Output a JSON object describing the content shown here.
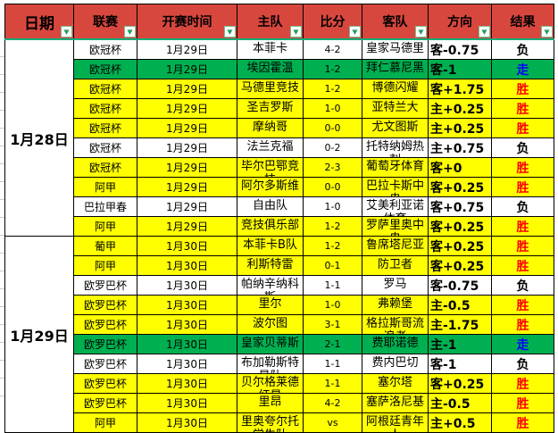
{
  "colors": {
    "header_bg": "#D8473E",
    "header_underline": "#0FAE7B",
    "row_yellow": "#FFFF00",
    "row_green": "#00B050",
    "row_white": "#FFFFFF",
    "win": "#FF0000",
    "push": "#0000FF",
    "loss": "#000000",
    "filter_arrow": "#1E9E5C",
    "filter_border": "#79BD8F",
    "grid": "#000000"
  },
  "icons": {
    "filter_dropdown": "▼"
  },
  "header": {
    "columns": [
      {
        "key": "date",
        "label": "日期"
      },
      {
        "key": "league",
        "label": "联赛"
      },
      {
        "key": "kickoff",
        "label": "开赛时间"
      },
      {
        "key": "home",
        "label": "主队"
      },
      {
        "key": "score",
        "label": "比分"
      },
      {
        "key": "away",
        "label": "客队"
      },
      {
        "key": "direction",
        "label": "方向"
      },
      {
        "key": "result",
        "label": "结果"
      }
    ]
  },
  "date_groups": [
    {
      "label": "1月28日",
      "span": 10
    },
    {
      "label": "1月29日",
      "span": 10
    }
  ],
  "rows": [
    {
      "league": "欧冠杯",
      "time": "1月29日",
      "home": "本菲卡",
      "score": "4-2",
      "away": "皇家马德里",
      "direction": "客-0.75",
      "result": "负",
      "bg": "white",
      "result_color": "loss"
    },
    {
      "league": "欧冠杯",
      "time": "1月29日",
      "home": "埃因霍温",
      "score": "1-2",
      "away": "拜仁慕尼黑",
      "direction": "客-1",
      "result": "走",
      "bg": "green",
      "result_color": "push"
    },
    {
      "league": "欧冠杯",
      "time": "1月29日",
      "home": "马德里竞技",
      "score": "1-2",
      "away": "博德闪耀",
      "direction": "客+1.75",
      "result": "胜",
      "bg": "yellow",
      "result_color": "win"
    },
    {
      "league": "欧冠杯",
      "time": "1月29日",
      "home": "圣吉罗斯",
      "score": "1-0",
      "away": "亚特兰大",
      "direction": "主+0.25",
      "result": "胜",
      "bg": "yellow",
      "result_color": "win"
    },
    {
      "league": "欧冠杯",
      "time": "1月29日",
      "home": "摩纳哥",
      "score": "0-0",
      "away": "尤文图斯",
      "direction": "主+0.25",
      "result": "胜",
      "bg": "yellow",
      "result_color": "win"
    },
    {
      "league": "欧冠杯",
      "time": "1月29日",
      "home": "法兰克福",
      "score": "0-2",
      "away": "托特纳姆热刺",
      "direction": "主+0.75",
      "result": "负",
      "bg": "white",
      "result_color": "loss"
    },
    {
      "league": "欧冠杯",
      "time": "1月29日",
      "home": "毕尔巴鄂竞技",
      "score": "2-3",
      "away": "葡萄牙体育",
      "direction": "客+0",
      "result": "胜",
      "bg": "yellow",
      "result_color": "win"
    },
    {
      "league": "阿甲",
      "time": "1月29日",
      "home": "阿尔多斯维",
      "score": "0-0",
      "away": "巴拉卡斯中央",
      "direction": "客+0.25",
      "result": "胜",
      "bg": "yellow",
      "result_color": "win"
    },
    {
      "league": "巴拉甲春",
      "time": "1月29日",
      "home": "自由队",
      "score": "1-0",
      "away": "艾美利亚诺体育",
      "direction": "客+0.75",
      "result": "负",
      "bg": "white",
      "result_color": "loss"
    },
    {
      "league": "阿甲",
      "time": "1月29日",
      "home": "竞技俱乐部",
      "score": "1-2",
      "away": "罗萨里奥中央",
      "direction": "客+0.25",
      "result": "胜",
      "bg": "yellow",
      "result_color": "win"
    },
    {
      "league": "葡甲",
      "time": "1月30日",
      "home": "本菲卡B队",
      "score": "1-2",
      "away": "鲁席塔尼亚",
      "direction": "客+0.25",
      "result": "胜",
      "bg": "yellow",
      "result_color": "win"
    },
    {
      "league": "阿甲",
      "time": "1月30日",
      "home": "利斯特雷",
      "score": "0-1",
      "away": "防卫者",
      "direction": "客+0.25",
      "result": "胜",
      "bg": "yellow",
      "result_color": "win"
    },
    {
      "league": "欧罗巴杯",
      "time": "1月30日",
      "home": "帕纳辛纳科斯",
      "score": "1-1",
      "away": "罗马",
      "direction": "客-0.75",
      "result": "负",
      "bg": "white",
      "result_color": "loss"
    },
    {
      "league": "欧罗巴杯",
      "time": "1月30日",
      "home": "里尔",
      "score": "1-0",
      "away": "弗赖堡",
      "direction": "主-0.5",
      "result": "胜",
      "bg": "yellow",
      "result_color": "win"
    },
    {
      "league": "欧罗巴杯",
      "time": "1月30日",
      "home": "波尔图",
      "score": "3-1",
      "away": "格拉斯哥流浪者",
      "direction": "主-1.75",
      "result": "胜",
      "bg": "yellow",
      "result_color": "win"
    },
    {
      "league": "欧罗巴杯",
      "time": "1月30日",
      "home": "皇家贝蒂斯",
      "score": "2-1",
      "away": "费耶诺德",
      "direction": "主-1",
      "result": "走",
      "bg": "green",
      "result_color": "push"
    },
    {
      "league": "欧罗巴杯",
      "time": "1月30日",
      "home": "布加勒斯特星队",
      "score": "1-1",
      "away": "费内巴切",
      "direction": "客-1",
      "result": "负",
      "bg": "white",
      "result_color": "loss"
    },
    {
      "league": "欧罗巴杯",
      "time": "1月30日",
      "home": "贝尔格莱德红星",
      "score": "1-1",
      "away": "塞尔塔",
      "direction": "客+0.25",
      "result": "胜",
      "bg": "yellow",
      "result_color": "win"
    },
    {
      "league": "欧罗巴杯",
      "time": "1月30日",
      "home": "里昂",
      "score": "4-2",
      "away": "塞萨洛尼基",
      "direction": "主-0.5",
      "result": "胜",
      "bg": "yellow",
      "result_color": "win"
    },
    {
      "league": "阿甲",
      "time": "1月30日",
      "home": "里奥夸尔托学生队",
      "score": "vs",
      "away": "阿根廷青年人",
      "direction": "主+0.5",
      "result": "胜",
      "bg": "yellow",
      "result_color": "win"
    }
  ]
}
